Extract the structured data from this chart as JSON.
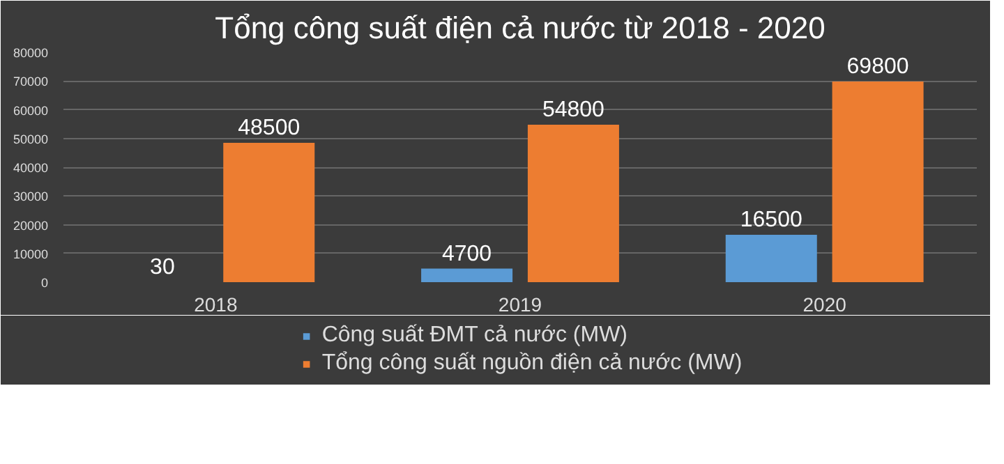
{
  "chart_data": {
    "type": "bar",
    "title": "Tổng công suất điện cả nước từ 2018 - 2020",
    "categories": [
      "2018",
      "2019",
      "2020"
    ],
    "series": [
      {
        "name": "Công suất ĐMT cả nước (MW)",
        "color": "#5b9bd5",
        "values": [
          30,
          4700,
          16500
        ]
      },
      {
        "name": "Tổng công suất nguồn điện cả nước (MW)",
        "color": "#ed7d31",
        "values": [
          48500,
          54800,
          69800
        ]
      }
    ],
    "ylim": [
      0,
      80000
    ],
    "yticks": [
      0,
      10000,
      20000,
      30000,
      40000,
      50000,
      60000,
      70000,
      80000
    ],
    "grid": "y",
    "legend": "bottom",
    "data_labels": true
  }
}
